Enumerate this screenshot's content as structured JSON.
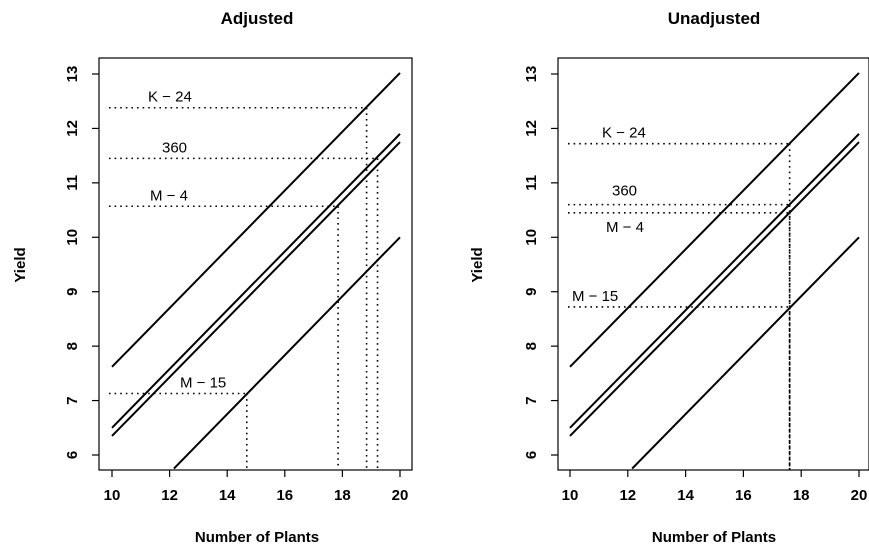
{
  "chart_data": [
    {
      "type": "line",
      "title": "Adjusted",
      "xlabel": "Number of Plants",
      "ylabel": "Yield",
      "xlim": [
        10,
        20
      ],
      "ylim": [
        6,
        13
      ],
      "xticks": [
        "10",
        "12",
        "14",
        "16",
        "18",
        "20"
      ],
      "yticks": [
        "6",
        "7",
        "8",
        "9",
        "10",
        "11",
        "12",
        "13"
      ],
      "series": [
        {
          "name": "K − 24",
          "x": [
            10,
            20
          ],
          "y": [
            7.62,
            13.02
          ]
        },
        {
          "name": "360",
          "x": [
            10,
            20
          ],
          "y": [
            6.5,
            11.9
          ]
        },
        {
          "name": "M − 4",
          "x": [
            10,
            20
          ],
          "y": [
            6.35,
            11.75
          ]
        },
        {
          "name": "M − 15",
          "x": [
            12.15,
            20
          ],
          "y": [
            5.75,
            10.0
          ]
        }
      ],
      "annotations": [
        {
          "label": "K − 24",
          "yield": 12.38,
          "plants": 18.84
        },
        {
          "label": "360",
          "yield": 11.45,
          "plants": 19.22
        },
        {
          "label": "M − 4",
          "yield": 10.57,
          "plants": 17.85
        },
        {
          "label": "M − 15",
          "yield": 7.13,
          "plants": 14.68
        }
      ]
    },
    {
      "type": "line",
      "title": "Unadjusted",
      "xlabel": "Number of Plants",
      "ylabel": "Yield",
      "xlim": [
        10,
        20
      ],
      "ylim": [
        6,
        13
      ],
      "xticks": [
        "10",
        "12",
        "14",
        "16",
        "18",
        "20"
      ],
      "yticks": [
        "6",
        "7",
        "8",
        "9",
        "10",
        "11",
        "12",
        "13"
      ],
      "series": [
        {
          "name": "K − 24",
          "x": [
            10,
            20
          ],
          "y": [
            7.62,
            13.02
          ]
        },
        {
          "name": "360",
          "x": [
            10,
            20
          ],
          "y": [
            6.5,
            11.9
          ]
        },
        {
          "name": "M − 4",
          "x": [
            10,
            20
          ],
          "y": [
            6.35,
            11.75
          ]
        },
        {
          "name": "M − 15",
          "x": [
            12.15,
            20
          ],
          "y": [
            5.75,
            10.0
          ]
        }
      ],
      "annotations": [
        {
          "label": "K − 24",
          "yield": 11.72,
          "plants": 17.6
        },
        {
          "label": "360",
          "yield": 10.6,
          "plants": 17.6
        },
        {
          "label": "M − 4",
          "yield": 10.45,
          "plants": 17.6
        },
        {
          "label": "M − 15",
          "yield": 8.72,
          "plants": 17.6
        }
      ]
    }
  ]
}
